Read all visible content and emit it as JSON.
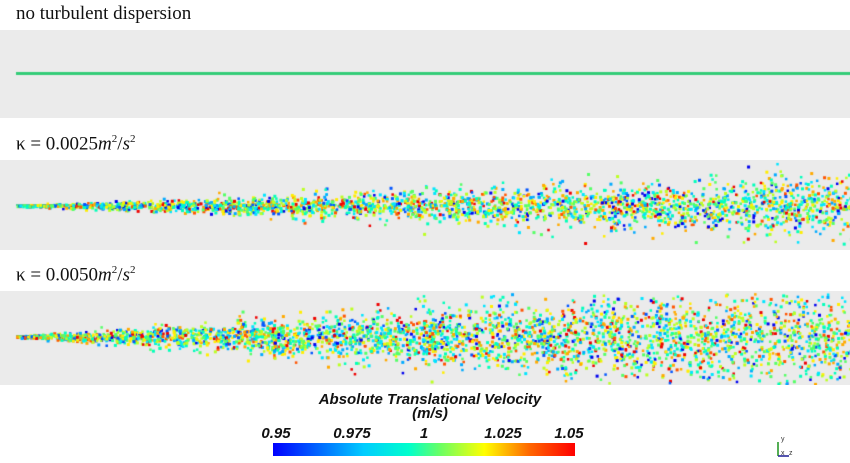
{
  "panels": [
    {
      "label_text": "no turbulent dispersion",
      "kind": "plain"
    },
    {
      "label_prefix": "κ = 0.0025",
      "label_unit_m": "m",
      "label_exp1": "2",
      "label_slash": "/",
      "label_unit_s": "s",
      "label_exp2": "2",
      "kind": "math"
    },
    {
      "label_prefix": "κ = 0.0050",
      "label_unit_m": "m",
      "label_exp1": "2",
      "label_slash": "/",
      "label_unit_s": "s",
      "label_exp2": "2",
      "kind": "math"
    }
  ],
  "legend": {
    "title_line1": "Absolute Translational Velocity",
    "title_line2": "(m/s)",
    "ticks": [
      "0.95",
      "0.975",
      "1",
      "1.025",
      "1.05"
    ],
    "colors": [
      "#0000ff",
      "#00ccff",
      "#66ff66",
      "#ffff00",
      "#ff0000"
    ]
  },
  "axes_icon": {
    "y": "y",
    "x": "x",
    "z": "z"
  },
  "stream_color": "#33cc77",
  "panel_background": "#ebebeb"
}
